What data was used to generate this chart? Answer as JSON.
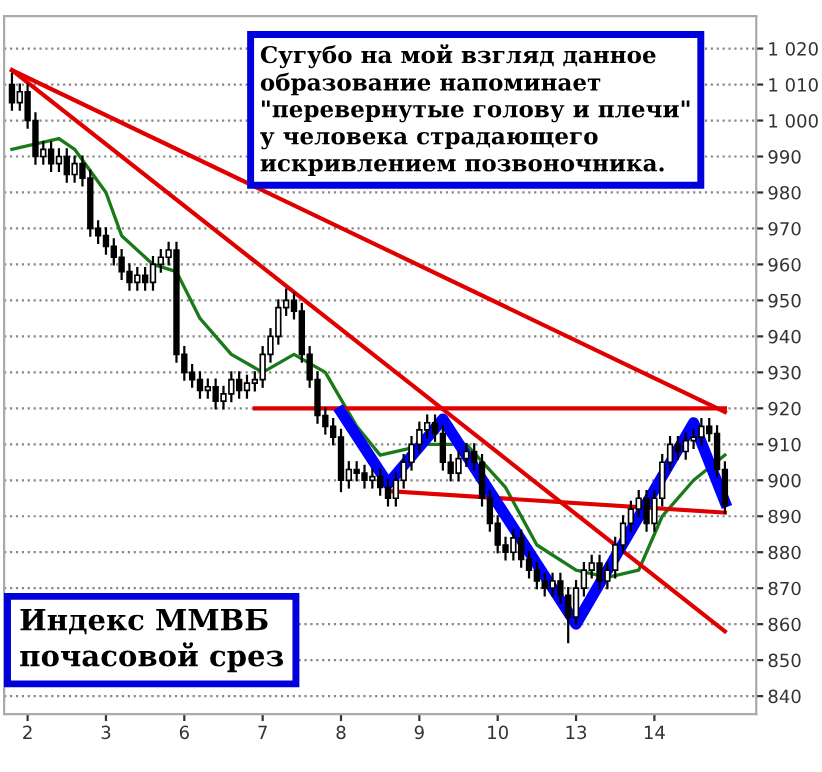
{
  "chart_data": {
    "type": "candlestick",
    "categories": [
      null,
      null,
      "2",
      null,
      null,
      null,
      null,
      null,
      null,
      null,
      null,
      null,
      "3",
      null,
      null,
      null,
      null,
      null,
      null,
      null,
      null,
      null,
      "6",
      null,
      null,
      null,
      null,
      null,
      null,
      null,
      null,
      null,
      "7",
      null,
      null,
      null,
      null,
      null,
      null,
      null,
      null,
      null,
      "8",
      null,
      null,
      null,
      null,
      null,
      null,
      null,
      null,
      null,
      "9",
      null,
      null,
      null,
      null,
      null,
      null,
      null,
      null,
      null,
      "10",
      null,
      null,
      null,
      null,
      null,
      null,
      null,
      null,
      null,
      "13",
      null,
      null,
      null,
      null,
      null,
      null,
      null,
      null,
      null,
      "14",
      null,
      null,
      null,
      null,
      null,
      null,
      null,
      null,
      null
    ],
    "ohlc": [
      [
        1010,
        1013,
        1003,
        1005
      ],
      [
        1005,
        1010,
        1003,
        1008
      ],
      [
        1008,
        1010,
        998,
        1000
      ],
      [
        1000,
        1002,
        988,
        990
      ],
      [
        990,
        994,
        988,
        992
      ],
      [
        992,
        994,
        986,
        988
      ],
      [
        988,
        992,
        986,
        990
      ],
      [
        990,
        992,
        983,
        985
      ],
      [
        985,
        990,
        983,
        988
      ],
      [
        988,
        990,
        982,
        984
      ],
      [
        984,
        986,
        968,
        970
      ],
      [
        970,
        972,
        966,
        968
      ],
      [
        968,
        970,
        963,
        965
      ],
      [
        965,
        967,
        960,
        962
      ],
      [
        962,
        964,
        956,
        958
      ],
      [
        958,
        960,
        953,
        955
      ],
      [
        955,
        959,
        953,
        957
      ],
      [
        957,
        959,
        953,
        955
      ],
      [
        955,
        962,
        953,
        960
      ],
      [
        960,
        964,
        958,
        962
      ],
      [
        962,
        966,
        960,
        964
      ],
      [
        964,
        966,
        933,
        935
      ],
      [
        935,
        937,
        928,
        930
      ],
      [
        930,
        932,
        926,
        928
      ],
      [
        928,
        930,
        923,
        925
      ],
      [
        925,
        928,
        923,
        926
      ],
      [
        926,
        928,
        920,
        922
      ],
      [
        922,
        926,
        920,
        924
      ],
      [
        924,
        930,
        922,
        928
      ],
      [
        928,
        930,
        923,
        925
      ],
      [
        925,
        929,
        923,
        927
      ],
      [
        927,
        930,
        925,
        928
      ],
      [
        928,
        937,
        926,
        935
      ],
      [
        935,
        942,
        933,
        940
      ],
      [
        940,
        950,
        938,
        948
      ],
      [
        948,
        953,
        946,
        950
      ],
      [
        950,
        952,
        945,
        947
      ],
      [
        947,
        949,
        933,
        935
      ],
      [
        935,
        937,
        926,
        928
      ],
      [
        928,
        930,
        916,
        918
      ],
      [
        918,
        920,
        913,
        915
      ],
      [
        915,
        917,
        910,
        912
      ],
      [
        912,
        914,
        897,
        900
      ],
      [
        900,
        905,
        898,
        903
      ],
      [
        903,
        905,
        900,
        902
      ],
      [
        902,
        904,
        898,
        900
      ],
      [
        900,
        903,
        898,
        901
      ],
      [
        901,
        903,
        896,
        898
      ],
      [
        898,
        900,
        893,
        895
      ],
      [
        895,
        902,
        893,
        900
      ],
      [
        900,
        907,
        898,
        905
      ],
      [
        905,
        912,
        903,
        910
      ],
      [
        910,
        916,
        908,
        914
      ],
      [
        914,
        918,
        912,
        916
      ],
      [
        916,
        918,
        911,
        913
      ],
      [
        913,
        915,
        903,
        905
      ],
      [
        905,
        907,
        900,
        902
      ],
      [
        902,
        908,
        900,
        906
      ],
      [
        906,
        910,
        904,
        908
      ],
      [
        908,
        910,
        903,
        905
      ],
      [
        905,
        907,
        893,
        895
      ],
      [
        895,
        897,
        886,
        888
      ],
      [
        888,
        890,
        880,
        882
      ],
      [
        882,
        884,
        878,
        880
      ],
      [
        880,
        886,
        878,
        884
      ],
      [
        884,
        886,
        876,
        878
      ],
      [
        878,
        880,
        873,
        875
      ],
      [
        875,
        877,
        870,
        872
      ],
      [
        872,
        874,
        868,
        870
      ],
      [
        870,
        874,
        868,
        872
      ],
      [
        872,
        874,
        866,
        868
      ],
      [
        868,
        870,
        855,
        862
      ],
      [
        862,
        872,
        860,
        870
      ],
      [
        870,
        877,
        868,
        875
      ],
      [
        875,
        879,
        873,
        877
      ],
      [
        877,
        879,
        870,
        872
      ],
      [
        872,
        877,
        870,
        875
      ],
      [
        875,
        884,
        873,
        882
      ],
      [
        882,
        890,
        880,
        888
      ],
      [
        888,
        894,
        886,
        892
      ],
      [
        892,
        897,
        890,
        895
      ],
      [
        895,
        897,
        886,
        888
      ],
      [
        888,
        897,
        886,
        895
      ],
      [
        895,
        907,
        893,
        905
      ],
      [
        905,
        912,
        903,
        910
      ],
      [
        910,
        912,
        906,
        908
      ],
      [
        908,
        913,
        906,
        911
      ],
      [
        911,
        914,
        909,
        912
      ],
      [
        912,
        917,
        910,
        915
      ],
      [
        915,
        917,
        911,
        913
      ],
      [
        913,
        915,
        901,
        903
      ],
      [
        903,
        905,
        891,
        893
      ]
    ],
    "color": "#000000",
    "series": [
      {
        "type": "line",
        "color": "#1a7a1a",
        "values": [
          992,
          null,
          null,
          null,
          null,
          null,
          995,
          null,
          992,
          null,
          null,
          null,
          980,
          null,
          968,
          null,
          null,
          null,
          960,
          null,
          null,
          958,
          null,
          null,
          945,
          null,
          null,
          null,
          935,
          null,
          null,
          null,
          930,
          null,
          null,
          null,
          935,
          null,
          null,
          null,
          930,
          null,
          null,
          null,
          915,
          null,
          null,
          907,
          null,
          null,
          null,
          null,
          null,
          910,
          null,
          null,
          null,
          null,
          910,
          null,
          null,
          null,
          null,
          898,
          null,
          null,
          null,
          882,
          null,
          null,
          null,
          null,
          875,
          null,
          null,
          null,
          873,
          null,
          null,
          null,
          875,
          null,
          null,
          890,
          null,
          null,
          null,
          900,
          null,
          null,
          null,
          907
        ]
      },
      {
        "type": "line",
        "color": "#e00000",
        "values": [
          1014,
          null,
          null,
          null,
          null,
          null,
          null,
          null,
          null,
          null,
          null,
          null,
          null,
          null,
          null,
          null,
          null,
          null,
          null,
          null,
          null,
          null,
          null,
          null,
          null,
          null,
          null,
          null,
          null,
          null,
          null,
          null,
          null,
          null,
          null,
          null,
          null,
          null,
          null,
          null,
          null,
          null,
          null,
          null,
          null,
          null,
          null,
          null,
          null,
          null,
          null,
          null,
          null,
          null,
          null,
          null,
          null,
          null,
          null,
          null,
          null,
          null,
          null,
          null,
          null,
          null,
          null,
          null,
          null,
          null,
          null,
          null,
          null,
          null,
          null,
          null,
          null,
          null,
          null,
          null,
          null,
          null,
          null,
          null,
          null,
          null,
          null,
          null,
          null,
          null,
          null,
          919
        ]
      },
      {
        "type": "line",
        "color": "#e00000",
        "values": [
          1014,
          null,
          null,
          null,
          null,
          null,
          null,
          null,
          null,
          null,
          null,
          null,
          null,
          null,
          null,
          null,
          null,
          null,
          null,
          null,
          null,
          null,
          null,
          null,
          null,
          null,
          null,
          null,
          null,
          null,
          null,
          null,
          null,
          null,
          null,
          null,
          null,
          null,
          null,
          null,
          null,
          null,
          null,
          null,
          null,
          null,
          null,
          null,
          null,
          null,
          null,
          null,
          null,
          null,
          null,
          null,
          null,
          null,
          null,
          null,
          null,
          null,
          null,
          null,
          null,
          null,
          null,
          null,
          null,
          null,
          null,
          null,
          null,
          null,
          null,
          null,
          null,
          null,
          null,
          null,
          null,
          null,
          null,
          null,
          null,
          null,
          null,
          null,
          null,
          null,
          null,
          858
        ]
      },
      {
        "type": "line",
        "color": "#e00000",
        "values": [
          null,
          null,
          null,
          null,
          null,
          null,
          null,
          null,
          null,
          null,
          null,
          null,
          null,
          null,
          null,
          null,
          null,
          null,
          null,
          null,
          null,
          null,
          null,
          null,
          null,
          null,
          null,
          null,
          null,
          null,
          null,
          920,
          null,
          null,
          null,
          null,
          null,
          null,
          null,
          null,
          null,
          null,
          null,
          null,
          null,
          null,
          null,
          null,
          null,
          null,
          null,
          null,
          null,
          null,
          null,
          null,
          null,
          null,
          null,
          null,
          null,
          null,
          null,
          null,
          null,
          null,
          null,
          null,
          null,
          null,
          null,
          null,
          null,
          null,
          null,
          null,
          null,
          null,
          null,
          null,
          null,
          null,
          null,
          null,
          null,
          null,
          null,
          null,
          null,
          null,
          null,
          920
        ]
      },
      {
        "type": "line",
        "color": "#e00000",
        "values": [
          null,
          null,
          null,
          null,
          null,
          null,
          null,
          null,
          null,
          null,
          null,
          null,
          null,
          null,
          null,
          null,
          null,
          null,
          null,
          null,
          null,
          null,
          null,
          null,
          null,
          null,
          null,
          null,
          null,
          null,
          null,
          null,
          null,
          null,
          null,
          null,
          null,
          null,
          null,
          null,
          null,
          null,
          null,
          null,
          null,
          null,
          null,
          null,
          897,
          null,
          null,
          null,
          null,
          null,
          null,
          null,
          null,
          null,
          null,
          null,
          null,
          null,
          null,
          null,
          null,
          null,
          null,
          null,
          null,
          null,
          null,
          null,
          null,
          null,
          null,
          null,
          null,
          null,
          null,
          null,
          null,
          null,
          null,
          null,
          null,
          null,
          null,
          null,
          null,
          null,
          null,
          891
        ]
      },
      {
        "type": "line",
        "color": "#0000ff",
        "values": [
          null,
          null,
          null,
          null,
          null,
          null,
          null,
          null,
          null,
          null,
          null,
          null,
          null,
          null,
          null,
          null,
          null,
          null,
          null,
          null,
          null,
          null,
          null,
          null,
          null,
          null,
          null,
          null,
          null,
          null,
          null,
          null,
          null,
          null,
          null,
          null,
          null,
          null,
          null,
          null,
          null,
          null,
          919,
          null,
          null,
          null,
          null,
          null,
          899,
          null,
          null,
          null,
          null,
          null,
          null,
          917,
          null,
          null,
          null,
          null,
          null,
          null,
          null,
          null,
          null,
          null,
          null,
          null,
          null,
          null,
          null,
          null,
          860,
          null,
          null,
          null,
          null,
          null,
          null,
          null,
          null,
          null,
          null,
          null,
          null,
          null,
          null,
          916,
          null,
          null,
          null,
          894
        ]
      }
    ],
    "ylim": [
      835,
      1029
    ],
    "yticks": [
      840,
      850,
      860,
      870,
      880,
      890,
      900,
      910,
      920,
      930,
      940,
      950,
      960,
      970,
      980,
      990,
      {
        "value": 1000,
        "label": "1 000"
      },
      {
        "value": 1010,
        "label": "1 010"
      },
      {
        "value": 1020,
        "label": "1 020"
      }
    ],
    "grid": "y",
    "annotations": [
      "Сугубо на мой взгляд данное\nобразование напоминает\n\"перевернутые голову и плечи\"\nу человека страдающего\nискривлением позвоночника.",
      "Индекс ММВБ\nпочасовой срез"
    ]
  }
}
